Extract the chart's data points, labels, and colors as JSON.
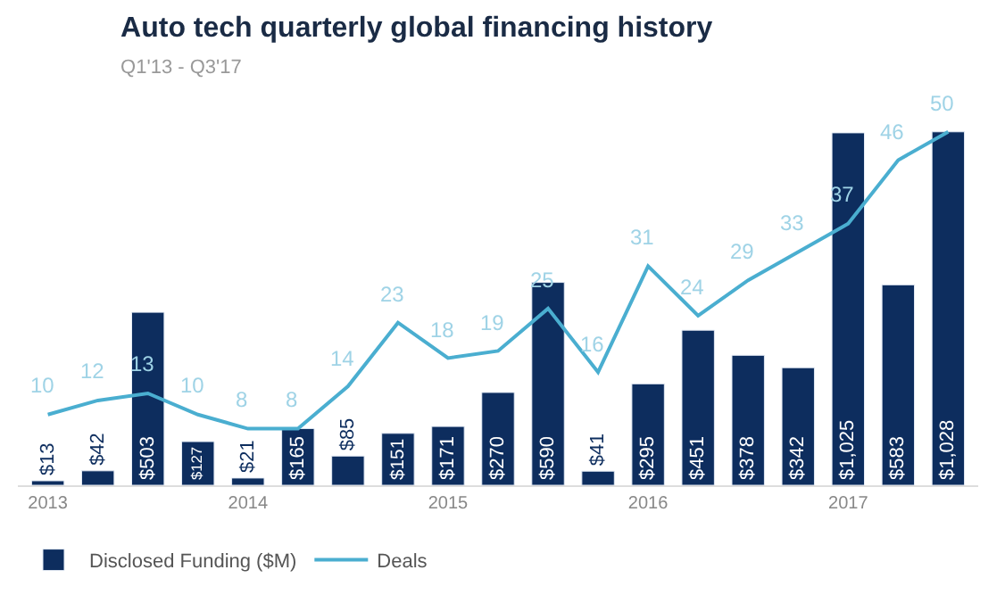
{
  "chart_data": {
    "type": "bar",
    "title": "Auto tech quarterly global financing history",
    "subtitle": "Q1'13 - Q3'17",
    "categories": [
      "2013",
      null,
      null,
      null,
      "2014",
      null,
      null,
      null,
      "2015",
      null,
      null,
      null,
      "2016",
      null,
      null,
      null,
      "2017",
      null,
      null
    ],
    "series": [
      {
        "name": "Disclosed Funding ($M)",
        "color": "#0d2d5e",
        "values": [
          13,
          42,
          503,
          127,
          21,
          165,
          85,
          151,
          171,
          270,
          590,
          41,
          295,
          451,
          378,
          342,
          1025,
          583,
          1028
        ],
        "value_labels": [
          "$13",
          "$42",
          "$503",
          "$127",
          "$21",
          "$165",
          "$85",
          "$151",
          "$171",
          "$270",
          "$590",
          "$41",
          "$295",
          "$451",
          "$378",
          "$342",
          "$1,025",
          "$583",
          "$1,028"
        ]
      },
      {
        "name": "Deals",
        "type": "line",
        "axis": "y2",
        "color": "#4aaed0",
        "values": [
          10,
          12,
          13,
          10,
          8,
          8,
          14,
          23,
          18,
          19,
          25,
          16,
          31,
          24,
          29,
          33,
          37,
          46,
          50
        ]
      }
    ],
    "data_labels": true,
    "legend": "bottom left",
    "tick_labels": "x"
  }
}
